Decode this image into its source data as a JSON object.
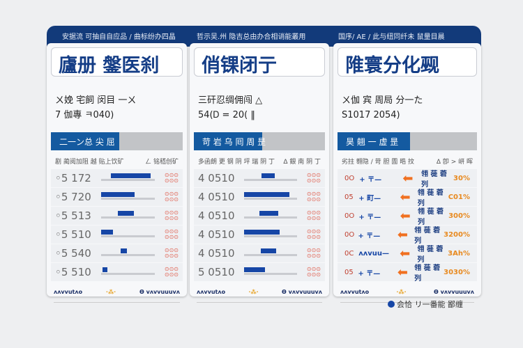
{
  "header": [
    "安据流 可抽自自应品 / 曲标纷办四晶",
    "哲示吴.州 隐吉总由办合相诮能叢用",
    "国序/ AE / 此与纽同纤未 鼠量目晨"
  ],
  "panels": [
    {
      "title": "廬册 鎜医刹",
      "sub": [
        "ㄨ娩 宅飼 闵目 一ㄨ",
        "7 伽專 ㅋ040)"
      ],
      "tab": "二一ン总 尖 屈",
      "colh": [
        "剧 蔺阅加阻 越 贴上饮矿",
        "ㄥ 铭嵇创矿"
      ],
      "rows": [
        {
          "num": "◦5 172",
          "fill": 0.74
        },
        {
          "num": "◦5 720",
          "fill": 0.62
        },
        {
          "num": "◦5 513",
          "fill": 0.3
        },
        {
          "num": "◦5 510",
          "fill": 0.22
        },
        {
          "num": "◦5 540",
          "fill": 0.12
        },
        {
          "num": "◦5 510",
          "fill": 0.1
        }
      ],
      "foot": [
        "ʌʌvvutʌo",
        "·⁂·",
        "Ɵ vʌvvuuuvʌ"
      ]
    },
    {
      "title": "俏锞闭亍",
      "sub": [
        "三矸忍绸佣闯 △",
        "54(Ꭰ = 20( ‖"
      ],
      "tab": "苛 岩 乌 囘 周 昰",
      "colh": [
        "多函朗 更 钢 阴 坪 瑞 阴 丁",
        "ᐃ 銀 南 阴 丁"
      ],
      "rows": [
        {
          "num": "4 0510",
          "fill": 0.25
        },
        {
          "num": "4 0510",
          "fill": 0.86
        },
        {
          "num": "4 0510",
          "fill": 0.35
        },
        {
          "num": "4 0510",
          "fill": 0.67
        },
        {
          "num": "4 0510",
          "fill": 0.3
        },
        {
          "num": "5 0510",
          "fill": 0.4
        }
      ],
      "foot": [
        "ʌʌvvutʌo",
        "·⁂·",
        "Ɵ vʌvvuuuvʌ"
      ]
    },
    {
      "title": "陮寰分化觋",
      "sub": [
        "ㄨ伽 宾 周局 分一た",
        "S1017 2054)"
      ],
      "tab": "昊 翹 一 虚 昰",
      "colh": [
        "劣拄 翱隐 / 苛 胆 圊 晧 抆",
        "ᐃ 卽 > 岍 晖"
      ],
      "rows": [
        {
          "code": "0O",
          "lbl": "+ 〒—",
          "name": "翎 蓰 菪 列",
          "val": "30%"
        },
        {
          "code": "05",
          "lbl": "+ 町—",
          "name": "翎 蓰 菪 列",
          "val": "C01%"
        },
        {
          "code": "0O",
          "lbl": "+ 〒—",
          "name": "翎 蓰 菪 列",
          "val": "300%"
        },
        {
          "code": "0O",
          "lbl": "+ 〒—",
          "name": "翎 蓰 菪 列",
          "val": "3200%"
        },
        {
          "code": "0C",
          "lbl": "ʌʌvuu—",
          "name": "翎 蓰 菪 列",
          "val": "3Ah%"
        },
        {
          "code": "05",
          "lbl": "+ 〒—",
          "name": "翎 蓰 菪 列",
          "val": "3030%"
        }
      ],
      "foot": [
        "ʌʌvvutʌo",
        "·⁂·",
        "Ɵ vʌvvuuuvʌ"
      ]
    }
  ],
  "caption": "会恰 リ一番能 鄙缠",
  "colors": {
    "navy": "#123a7a",
    "blue": "#145aa0",
    "orange": "#f07020"
  }
}
